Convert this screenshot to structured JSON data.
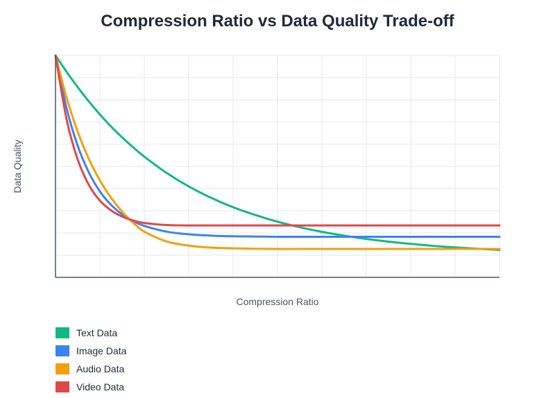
{
  "chart_data": {
    "type": "line",
    "title": "Compression Ratio vs Data Quality Trade-off",
    "xlabel": "Compression Ratio",
    "ylabel": "Data Quality",
    "xlim": [
      0,
      10
    ],
    "ylim": [
      0,
      10
    ],
    "grid": true,
    "tick_labels_shown": false,
    "legend_position": "bottom-left",
    "x": [
      0,
      0.25,
      0.5,
      0.75,
      1,
      1.25,
      1.5,
      1.75,
      2,
      2.5,
      3,
      3.5,
      4,
      4.5,
      5,
      5.5,
      6,
      6.5,
      7,
      7.5,
      8,
      8.5,
      9,
      9.5,
      10
    ],
    "series": [
      {
        "name": "Text Data",
        "color": "#10b981",
        "values": [
          10,
          9.26,
          8.57,
          7.93,
          7.34,
          6.8,
          6.31,
          5.86,
          5.44,
          4.71,
          4.1,
          3.59,
          3.16,
          2.81,
          2.51,
          2.26,
          2.05,
          1.88,
          1.73,
          1.61,
          1.51,
          1.42,
          1.35,
          1.29,
          1.24
        ]
      },
      {
        "name": "Image Data",
        "color": "#3b82f6",
        "values": [
          10,
          7.62,
          5.93,
          4.73,
          3.87,
          3.27,
          2.84,
          2.53,
          2.32,
          2.06,
          1.94,
          1.88,
          1.85,
          1.84,
          1.83,
          1.83,
          1.83,
          1.83,
          1.83,
          1.83,
          1.83,
          1.83,
          1.83,
          1.83,
          1.83
        ]
      },
      {
        "name": "Audio Data",
        "color": "#f59e0b",
        "values": [
          10,
          8.09,
          6.56,
          5.34,
          4.37,
          3.59,
          2.96,
          2.46,
          2.06,
          1.62,
          1.43,
          1.34,
          1.31,
          1.29,
          1.28,
          1.28,
          1.28,
          1.28,
          1.28,
          1.28,
          1.28,
          1.28,
          1.28,
          1.28,
          1.28
        ]
      },
      {
        "name": "Video Data",
        "color": "#e04848",
        "values": [
          10,
          7.12,
          5.31,
          4.17,
          3.46,
          3.02,
          2.74,
          2.56,
          2.45,
          2.36,
          2.34,
          2.34,
          2.34,
          2.34,
          2.34,
          2.34,
          2.34,
          2.34,
          2.34,
          2.34,
          2.34,
          2.34,
          2.34,
          2.34,
          2.34
        ]
      }
    ]
  }
}
